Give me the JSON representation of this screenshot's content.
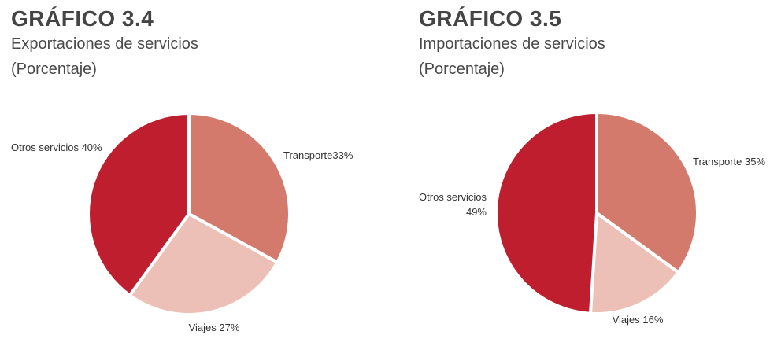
{
  "colors": {
    "transport": "#d47a6c",
    "travel": "#ecc0b6",
    "other": "#be1e2d",
    "separator": "#ffffff"
  },
  "chart_data": [
    {
      "type": "pie",
      "title": "GRÁFICO 3.4",
      "subtitle": "Exportaciones de servicios",
      "units": "(Porcentaje)",
      "slices": [
        {
          "label": "Transporte",
          "display": "Transporte33%",
          "value": 33,
          "color": "#d47a6c"
        },
        {
          "label": "Viajes",
          "display": "Viajes 27%",
          "value": 27,
          "color": "#ecc0b6"
        },
        {
          "label": "Otros servicios",
          "display": "Otros servicios 40%",
          "value": 40,
          "color": "#be1e2d"
        }
      ]
    },
    {
      "type": "pie",
      "title": "GRÁFICO 3.5",
      "subtitle": "Importaciones de servicios",
      "units": "(Porcentaje)",
      "slices": [
        {
          "label": "Transporte",
          "display": "Transporte 35%",
          "value": 35,
          "color": "#d47a6c"
        },
        {
          "label": "Viajes",
          "display": "Viajes 16%",
          "value": 16,
          "color": "#ecc0b6"
        },
        {
          "label": "Otros servicios",
          "display": "Otros servicios|49%",
          "value": 49,
          "color": "#be1e2d"
        }
      ]
    }
  ]
}
